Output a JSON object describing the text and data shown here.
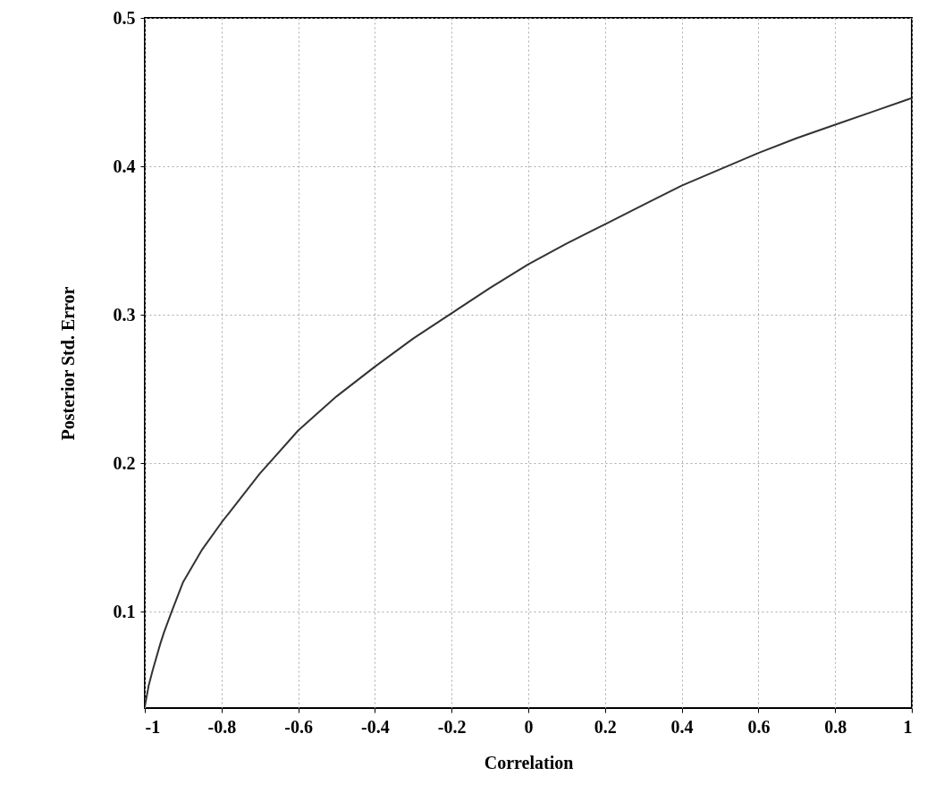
{
  "chart_data": {
    "type": "line",
    "xlabel": "Correlation",
    "ylabel": "Posterior Std. Error",
    "x": [
      -1,
      -0.99,
      -0.98,
      -0.96,
      -0.95,
      -0.93,
      -0.9,
      -0.85,
      -0.8,
      -0.7,
      -0.6,
      -0.5,
      -0.4,
      -0.3,
      -0.2,
      -0.1,
      0,
      0.1,
      0.2,
      0.3,
      0.4,
      0.5,
      0.6,
      0.7,
      0.8,
      0.9,
      1
    ],
    "series": [
      {
        "color": "#333333",
        "values": [
          0.036,
          0.05,
          0.06,
          0.078,
          0.086,
          0.1,
          0.12,
          0.142,
          0.16,
          0.193,
          0.222,
          0.245,
          0.265,
          0.284,
          0.301,
          0.318,
          0.334,
          0.348,
          0.361,
          0.374,
          0.387,
          0.398,
          0.409,
          0.419,
          0.428,
          0.437,
          0.446
        ]
      }
    ],
    "xlim": [
      -1,
      1
    ],
    "xticks": [
      -1,
      -0.8,
      -0.6,
      -0.4,
      -0.2,
      0,
      0.2,
      0.4,
      0.6,
      0.8,
      1
    ],
    "ylim": [
      0.035,
      0.5
    ],
    "yticks": [
      0.1,
      0.2,
      0.3,
      0.4,
      0.5
    ],
    "grid": true,
    "line_style": "solid",
    "marker": "none"
  }
}
